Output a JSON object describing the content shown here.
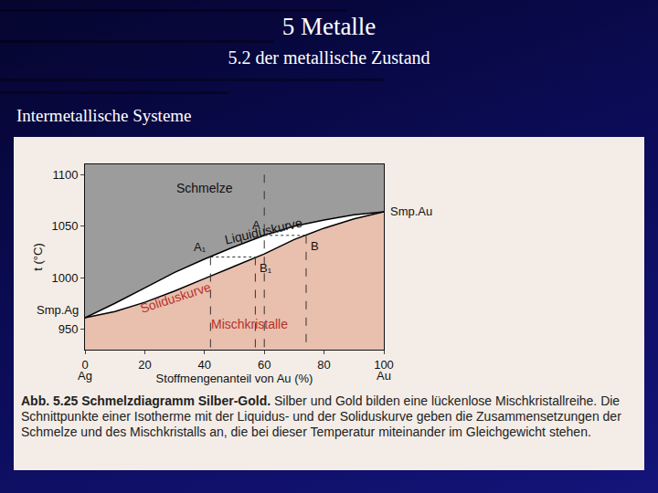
{
  "slide": {
    "title": "5 Metalle",
    "subtitle": "5.2 der metallische Zustand",
    "heading": "Intermetallische Systeme",
    "caption": {
      "label": "Abb. 5.25",
      "title": "Schmelzdiagramm Silber-Gold.",
      "text": "Silber und Gold bilden eine lückenlose Mischkristallreihe. Die Schnittpunkte einer Isotherme mit der Liquidus- und der Soliduskurve geben die Zusammensetzungen der Schmelze und des Mischkristalls an, die bei dieser Temperatur miteinander im Gleichgewicht stehen."
    }
  },
  "chart_data": {
    "type": "line",
    "x_label": "Stoffmengenanteil von Au (%)",
    "y_label": "t (°C)",
    "x": [
      0,
      10,
      20,
      30,
      40,
      50,
      60,
      70,
      80,
      90,
      100
    ],
    "series": [
      {
        "name": "Liquiduskurve",
        "color": "#000000",
        "values": [
          961,
          975,
          990,
          1005,
          1018,
          1030,
          1041,
          1050,
          1056,
          1061,
          1064
        ]
      },
      {
        "name": "Soliduskurve",
        "color": "#000000",
        "values": [
          961,
          967,
          976,
          987,
          999,
          1011,
          1023,
          1037,
          1048,
          1057,
          1064
        ]
      }
    ],
    "xlim": [
      0,
      100
    ],
    "ylim": [
      930,
      1110
    ],
    "xticks": [
      0,
      20,
      40,
      60,
      80,
      100
    ],
    "yticks": [
      950,
      1000,
      1050,
      1100
    ],
    "grid": false,
    "region_labels": {
      "melt": "Schmelze",
      "solid": "Mischkristalle"
    },
    "melting_point_labels": {
      "left": "Smp.Ag",
      "right": "Smp.Au"
    },
    "end_labels": [
      {
        "x": 0,
        "text": "Ag"
      },
      {
        "x": 100,
        "text": "Au"
      }
    ],
    "points": [
      {
        "label": "A",
        "x": 60,
        "t": 1041,
        "phase": "liquid",
        "line_up_to": 1100
      },
      {
        "label": "B",
        "x": 74,
        "t": 1041,
        "phase": "solid"
      },
      {
        "label": "A₁",
        "x": 42,
        "t": 1020,
        "phase": "liquid"
      },
      {
        "label": "B₁",
        "x": 57,
        "t": 1020,
        "phase": "solid"
      }
    ]
  }
}
